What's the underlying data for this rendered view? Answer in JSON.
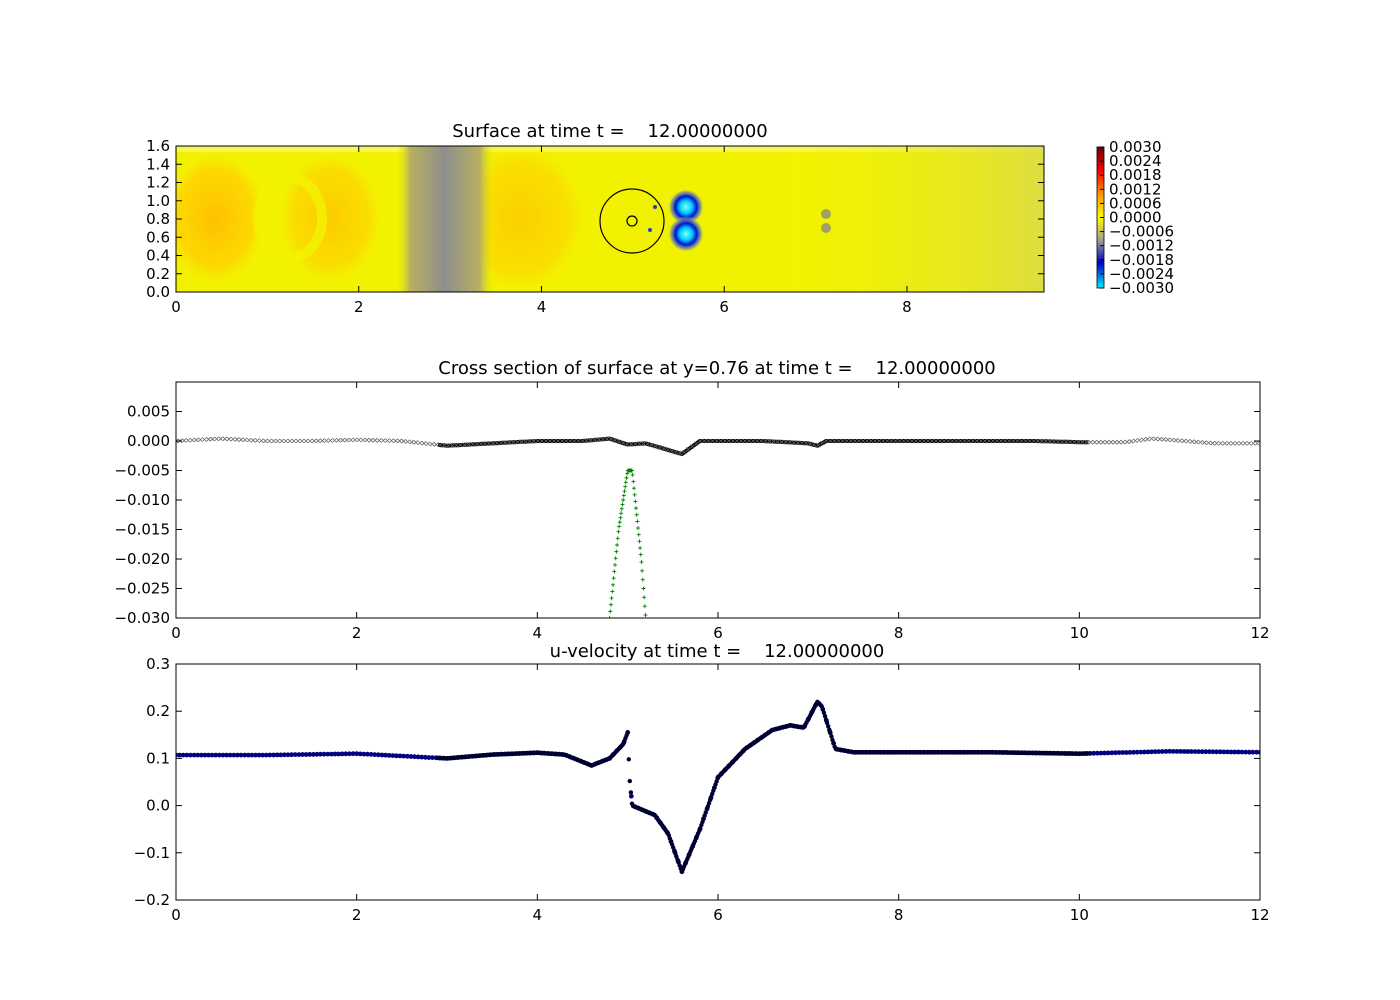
{
  "chart_data": [
    {
      "type": "heatmap",
      "title": "Surface at time t =    12.00000000",
      "xlim": [
        0,
        9.5
      ],
      "ylim": [
        0,
        1.6
      ],
      "xticks": [
        "0",
        "2",
        "4",
        "6",
        "8"
      ],
      "yticks": [
        "0.0",
        "0.2",
        "0.4",
        "0.6",
        "0.8",
        "1.0",
        "1.2",
        "1.4",
        "1.6"
      ],
      "colorbar": {
        "ticks": [
          "0.0030",
          "0.0024",
          "0.0018",
          "0.0012",
          "0.0006",
          "0.0000",
          "−0.0006",
          "−0.0012",
          "−0.0018",
          "−0.0024",
          "−0.0030"
        ],
        "range": [
          -0.003,
          0.003
        ],
        "colormap": [
          "#00f0ff",
          "#0000c8",
          "#9a9a9a",
          "#ffff00",
          "#ff9a00",
          "#ff0000",
          "#6a0000"
        ]
      },
      "features": [
        {
          "kind": "circle",
          "cx": 5.0,
          "cy": 0.76,
          "r": 0.35
        },
        {
          "kind": "small-circle",
          "cx": 5.0,
          "cy": 0.76,
          "r": 0.06
        },
        {
          "kind": "depression",
          "x": 5.6,
          "y": 0.92,
          "value": -0.003
        },
        {
          "kind": "depression",
          "x": 5.6,
          "y": 0.62,
          "value": -0.003
        }
      ],
      "colors": {
        "background": "#f2f200",
        "warm": "#ffc400",
        "cool": "#8e8e8e"
      }
    },
    {
      "type": "line",
      "title": "Cross section of surface at y=0.76 at time t =    12.00000000",
      "xlim": [
        0,
        12
      ],
      "ylim": [
        -0.03,
        0.01
      ],
      "xticks": [
        "0",
        "2",
        "4",
        "6",
        "8",
        "10",
        "12"
      ],
      "yticks": [
        "0.005",
        "0.000",
        "−0.005",
        "−0.010",
        "−0.015",
        "−0.020",
        "−0.025",
        "−0.030"
      ],
      "series": [
        {
          "marker": "x",
          "color": "#666666",
          "x": [
            0,
            0.5,
            1.0,
            1.5,
            2.0,
            2.5,
            3.0,
            3.5,
            4.0,
            4.5,
            4.8,
            5.0,
            5.2,
            5.6,
            5.8,
            6.5,
            7.0,
            7.1,
            7.2,
            7.5,
            8.0,
            8.5,
            9.0,
            9.5,
            10.0,
            10.5,
            10.8,
            11.0,
            11.5,
            12.0
          ],
          "y": [
            0.0,
            0.0004,
            0.0,
            0.0,
            0.0002,
            0.0,
            -0.0008,
            -0.0004,
            0.0,
            0.0,
            0.0004,
            -0.0006,
            -0.0004,
            -0.0022,
            0.0,
            0.0,
            -0.0004,
            -0.0008,
            0.0,
            0.0,
            0.0,
            0.0,
            0.0,
            0.0,
            -0.0002,
            -0.0002,
            0.0004,
            0.0002,
            -0.0004,
            -0.0004
          ]
        },
        {
          "marker": "+",
          "color": "#008000",
          "x": [
            4.8,
            4.9,
            5.0,
            5.05,
            5.15,
            5.2
          ],
          "y": [
            -0.03,
            -0.015,
            -0.005,
            -0.005,
            -0.02,
            -0.03
          ]
        }
      ],
      "highlight_range": [
        2.9,
        10.1
      ]
    },
    {
      "type": "scatter",
      "title": "u-velocity at time t =    12.00000000",
      "xlim": [
        0,
        12
      ],
      "ylim": [
        -0.2,
        0.3
      ],
      "xticks": [
        "0",
        "2",
        "4",
        "6",
        "8",
        "10",
        "12"
      ],
      "yticks": [
        "0.3",
        "0.2",
        "0.1",
        "0.0",
        "−0.1",
        "−0.2"
      ],
      "series": [
        {
          "marker": "o",
          "color": "#000080",
          "x": [
            0,
            1.0,
            2.0,
            2.5,
            3.0,
            3.5,
            4.0,
            4.3,
            4.6,
            4.8,
            4.95,
            5.0,
            5.02,
            5.05,
            5.3,
            5.45,
            5.6,
            5.8,
            6.0,
            6.3,
            6.6,
            6.8,
            6.95,
            7.1,
            7.15,
            7.3,
            7.5,
            8.0,
            9.0,
            10.0,
            11.0,
            12.0
          ],
          "y": [
            0.107,
            0.107,
            0.11,
            0.105,
            0.1,
            0.108,
            0.112,
            0.108,
            0.085,
            0.1,
            0.13,
            0.155,
            0.06,
            0.0,
            -0.02,
            -0.06,
            -0.14,
            -0.05,
            0.06,
            0.12,
            0.16,
            0.17,
            0.165,
            0.22,
            0.21,
            0.12,
            0.113,
            0.113,
            0.113,
            0.11,
            0.115,
            0.113
          ]
        }
      ]
    }
  ]
}
